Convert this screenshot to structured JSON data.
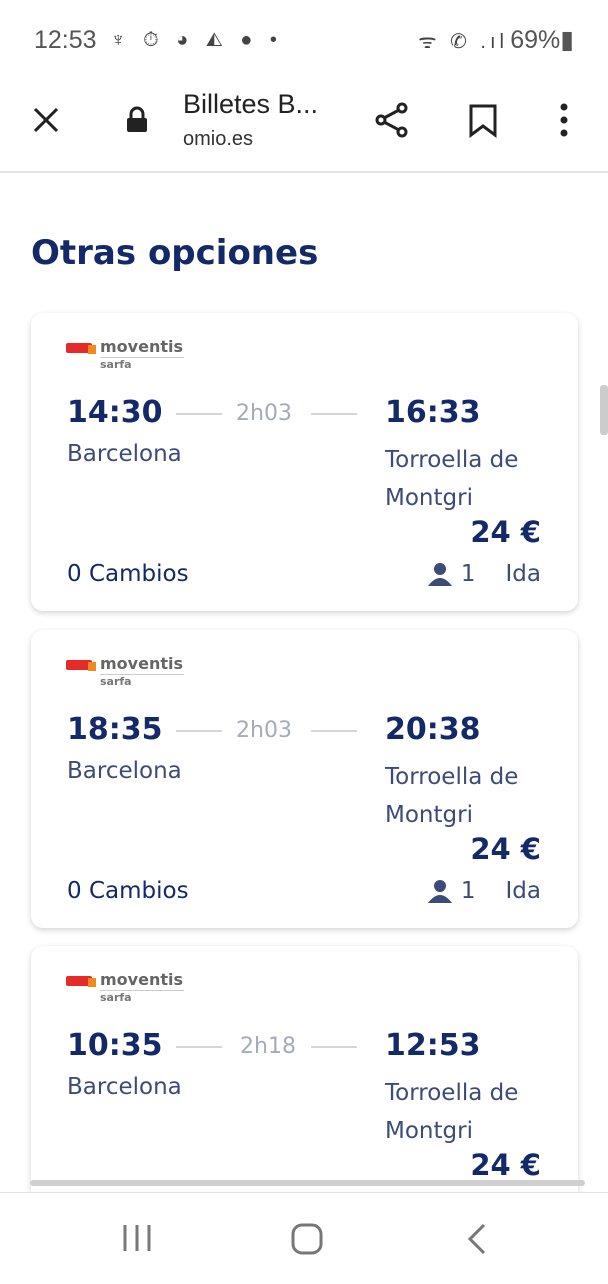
{
  "status_bar": {
    "time": "12:53",
    "battery": "69%",
    "icons": [
      "usb-icon",
      "timer-icon",
      "planet-icon",
      "message-icon",
      "account-icon",
      "dot-icon",
      "wifi-icon",
      "wifi-call-icon",
      "signal-icon",
      "battery-icon"
    ]
  },
  "browser": {
    "title": "Billetes B...",
    "url": "omio.es"
  },
  "section_title": "Otras opciones",
  "cards": [
    {
      "operator": "moventis",
      "operator_sub": "sarfa",
      "departure": "14:30",
      "duration": "2h03",
      "arrival": "16:33",
      "from": "Barcelona",
      "to": "Torroella de Montgri",
      "price": "24 €",
      "changes": "0 Cambios",
      "passengers": "1",
      "trip_type": "Ida"
    },
    {
      "operator": "moventis",
      "operator_sub": "sarfa",
      "departure": "18:35",
      "duration": "2h03",
      "arrival": "20:38",
      "from": "Barcelona",
      "to": "Torroella de Montgri",
      "price": "24 €",
      "changes": "0 Cambios",
      "passengers": "1",
      "trip_type": "Ida"
    },
    {
      "operator": "moventis",
      "operator_sub": "sarfa",
      "departure": "10:35",
      "duration": "2h18",
      "arrival": "12:53",
      "from": "Barcelona",
      "to": "Torroella de Montgri",
      "price": "24 €"
    }
  ],
  "colors": {
    "primary": "#132968",
    "secondary": "#3d4b78",
    "muted": "#a5abbb"
  }
}
